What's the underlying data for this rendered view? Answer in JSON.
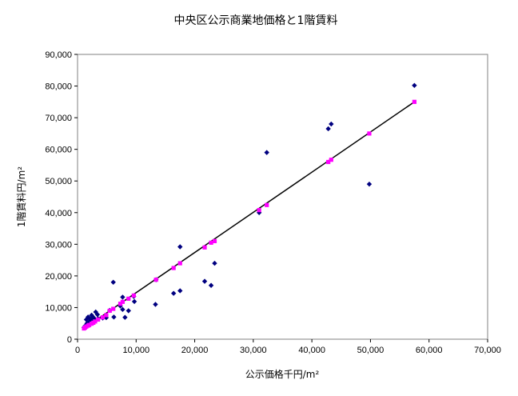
{
  "chart_data": {
    "type": "scatter",
    "title": "中央区公示商業地価格と1階賃料",
    "xlabel": "公示価格千円/m²",
    "ylabel": "1階賃料円/m²",
    "xlim": [
      0,
      70000
    ],
    "ylim": [
      0,
      90000
    ],
    "x_ticks": [
      0,
      10000,
      20000,
      30000,
      40000,
      50000,
      60000,
      70000
    ],
    "y_ticks": [
      0,
      10000,
      20000,
      30000,
      40000,
      50000,
      60000,
      70000,
      80000,
      90000
    ],
    "x_tick_labels": [
      "0",
      "10,000",
      "20,000",
      "30,000",
      "40,000",
      "50,000",
      "60,000",
      "70,000"
    ],
    "y_tick_labels": [
      "0",
      "10,000",
      "20,000",
      "30,000",
      "40,000",
      "50,000",
      "60,000",
      "70,000",
      "80,000",
      "90,000"
    ],
    "grid": false,
    "legend": "none",
    "plot_background": "#ffffff",
    "plot_border": "#808080",
    "series": [
      {
        "marker": "diamond",
        "color": "#000080",
        "points": [
          [
            57500,
            80200
          ],
          [
            43300,
            68000
          ],
          [
            42800,
            66500
          ],
          [
            32300,
            59000
          ],
          [
            49800,
            49000
          ],
          [
            31000,
            40000
          ],
          [
            17500,
            29200
          ],
          [
            23400,
            24000
          ],
          [
            13400,
            18800
          ],
          [
            6100,
            18000
          ],
          [
            21700,
            18300
          ],
          [
            16400,
            14500
          ],
          [
            17500,
            15300
          ],
          [
            22800,
            17000
          ],
          [
            9600,
            13500
          ],
          [
            7700,
            13300
          ],
          [
            13300,
            11000
          ],
          [
            9700,
            11900
          ],
          [
            7300,
            10500
          ],
          [
            8700,
            9000
          ],
          [
            7700,
            9400
          ],
          [
            5500,
            9100
          ],
          [
            8100,
            6900
          ],
          [
            6200,
            7000
          ],
          [
            4900,
            6800
          ],
          [
            4300,
            6700
          ],
          [
            3100,
            8600
          ],
          [
            3400,
            7800
          ],
          [
            2400,
            7600
          ],
          [
            1800,
            7000
          ],
          [
            1500,
            6200
          ],
          [
            2200,
            6400
          ],
          [
            2700,
            6900
          ],
          [
            3500,
            6500
          ],
          [
            3000,
            6100
          ],
          [
            2000,
            5500
          ],
          [
            1600,
            5000
          ],
          [
            2500,
            5700
          ],
          [
            1300,
            4200
          ],
          [
            1100,
            3700
          ]
        ]
      },
      {
        "marker": "square",
        "color": "#ff00ff",
        "points": [
          [
            57500,
            75000
          ],
          [
            49800,
            65000
          ],
          [
            43300,
            56700
          ],
          [
            42800,
            56000
          ],
          [
            32300,
            42400
          ],
          [
            31000,
            40800
          ],
          [
            23400,
            31000
          ],
          [
            22800,
            30500
          ],
          [
            21700,
            29000
          ],
          [
            17500,
            24000
          ],
          [
            16400,
            22500
          ],
          [
            13400,
            18800
          ],
          [
            9600,
            13800
          ],
          [
            8700,
            12800
          ],
          [
            7700,
            11800
          ],
          [
            7300,
            11200
          ],
          [
            6100,
            9600
          ],
          [
            5500,
            9000
          ],
          [
            4900,
            7600
          ],
          [
            4300,
            6900
          ],
          [
            3500,
            6200
          ],
          [
            3000,
            5600
          ],
          [
            2700,
            5200
          ],
          [
            2400,
            4900
          ],
          [
            2000,
            4500
          ],
          [
            1800,
            4300
          ],
          [
            1500,
            4000
          ],
          [
            1300,
            3700
          ],
          [
            1100,
            3400
          ]
        ]
      },
      {
        "type": "line",
        "color": "#000000",
        "points": [
          [
            1100,
            3400
          ],
          [
            57500,
            75000
          ]
        ]
      }
    ]
  }
}
